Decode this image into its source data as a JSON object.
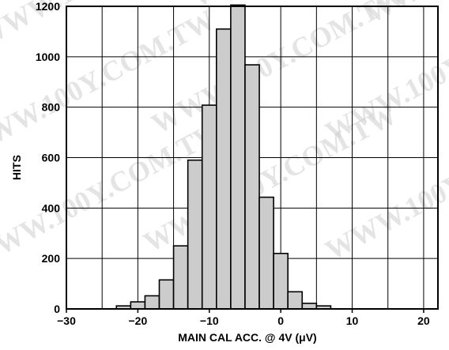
{
  "watermark": "WWW.100Y.COM.TW",
  "chart_data": {
    "type": "bar",
    "title": "",
    "xlabel": "MAIN CAL ACC. @ 4V (μV)",
    "ylabel": "HITS",
    "xlim": [
      -30,
      22
    ],
    "ylim": [
      0,
      1200
    ],
    "xticks": [
      -30,
      -20,
      -10,
      0,
      10,
      20
    ],
    "yticks": [
      0,
      200,
      400,
      600,
      800,
      1000,
      1200
    ],
    "grid": true,
    "bin_width": 2,
    "bins": [
      {
        "x0": -23,
        "x1": -21,
        "value": 12
      },
      {
        "x0": -21,
        "x1": -19,
        "value": 28
      },
      {
        "x0": -19,
        "x1": -17,
        "value": 52
      },
      {
        "x0": -17,
        "x1": -15,
        "value": 115
      },
      {
        "x0": -15,
        "x1": -13,
        "value": 250
      },
      {
        "x0": -13,
        "x1": -11,
        "value": 590
      },
      {
        "x0": -11,
        "x1": -9,
        "value": 808
      },
      {
        "x0": -9,
        "x1": -7,
        "value": 1110
      },
      {
        "x0": -7,
        "x1": -5,
        "value": 1205
      },
      {
        "x0": -5,
        "x1": -3,
        "value": 968
      },
      {
        "x0": -3,
        "x1": -1,
        "value": 443
      },
      {
        "x0": -1,
        "x1": 1,
        "value": 220
      },
      {
        "x0": 1,
        "x1": 3,
        "value": 68
      },
      {
        "x0": 3,
        "x1": 5,
        "value": 22
      },
      {
        "x0": 5,
        "x1": 7,
        "value": 12
      }
    ],
    "colors": {
      "bar_fill": "#cccccc",
      "bar_stroke": "#000000",
      "grid": "#000000",
      "axis": "#000000"
    }
  }
}
